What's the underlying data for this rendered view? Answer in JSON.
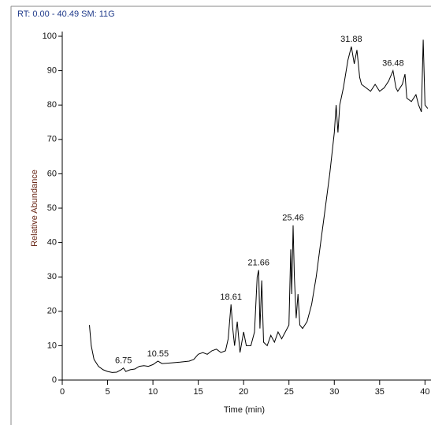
{
  "chart_data": {
    "type": "line",
    "header": "RT: 0.00 - 40.49   SM: 11G",
    "y_label": "Relative Abundance",
    "x_label": "Time (min)",
    "color": "#000000",
    "x": [
      3.0,
      3.2,
      3.5,
      4,
      4.5,
      5,
      5.5,
      6,
      6.5,
      6.75,
      7,
      7.5,
      8,
      8.5,
      9,
      9.5,
      10,
      10.55,
      11,
      12,
      13,
      14,
      14.5,
      15,
      15.5,
      16,
      16.5,
      17,
      17.5,
      18,
      18.3,
      18.61,
      18.8,
      19,
      19.3,
      19.6,
      20,
      20.3,
      20.8,
      21.2,
      21.5,
      21.66,
      21.8,
      22,
      22.2,
      22.6,
      23,
      23.4,
      23.8,
      24.2,
      24.6,
      25,
      25.2,
      25.3,
      25.46,
      25.6,
      25.8,
      26,
      26.2,
      26.5,
      27,
      27.5,
      28,
      28.5,
      29,
      29.5,
      30,
      30.2,
      30.4,
      30.6,
      31,
      31.5,
      31.88,
      32.2,
      32.5,
      32.8,
      33,
      33.5,
      34,
      34.5,
      35,
      35.5,
      36,
      36.48,
      36.8,
      37,
      37.5,
      37.8,
      38,
      38.5,
      39,
      39.3,
      39.6,
      39.8,
      40,
      40.3
    ],
    "values": [
      16,
      10,
      6,
      4,
      3,
      2.5,
      2.2,
      2.3,
      3,
      3.5,
      2.5,
      3,
      3.2,
      4,
      4.2,
      4,
      4.5,
      5.5,
      4.8,
      5,
      5.2,
      5.5,
      6,
      7.5,
      8,
      7.5,
      8.5,
      9,
      8,
      8.5,
      12,
      22,
      15,
      10,
      17,
      8,
      14,
      10,
      10,
      14,
      30,
      32,
      15,
      29,
      11,
      10,
      13,
      11,
      14,
      12,
      14,
      16,
      38,
      25,
      45,
      30,
      18,
      25,
      16,
      15,
      17,
      22,
      30,
      40,
      50,
      60,
      72,
      80,
      72,
      80,
      85,
      93,
      97,
      92,
      96,
      88,
      86,
      85,
      84,
      86,
      84,
      85,
      87,
      90,
      85,
      84,
      86,
      89,
      82,
      81,
      83,
      80,
      78,
      99,
      80,
      79
    ],
    "peak_labels": [
      6.75,
      10.55,
      18.61,
      21.66,
      25.46,
      31.88,
      36.48
    ],
    "xlim": [
      0,
      40.49
    ],
    "ylim": [
      0,
      100
    ],
    "xticks": [
      0,
      5,
      10,
      15,
      20,
      25,
      30,
      35,
      40
    ],
    "yticks": [
      0,
      10,
      20,
      30,
      40,
      50,
      60,
      70,
      80,
      90,
      100
    ]
  }
}
